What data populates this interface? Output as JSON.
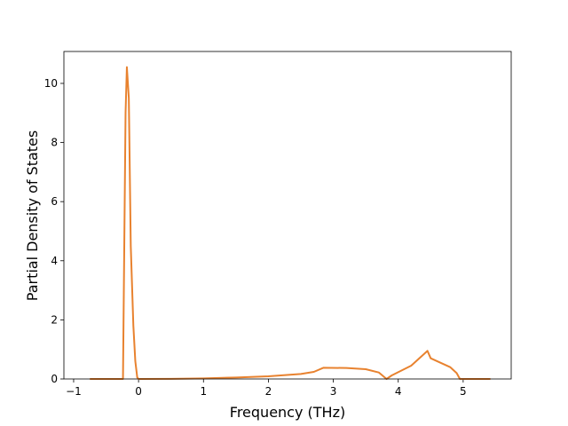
{
  "chart_data": {
    "type": "line",
    "xlabel": "Frequency (THz)",
    "ylabel": "Partial Density of States",
    "xlim": [
      -1.15,
      5.74
    ],
    "ylim": [
      0,
      11.08
    ],
    "xticks": [
      {
        "value": -1,
        "label": "−1"
      },
      0,
      1,
      2,
      3,
      4,
      5
    ],
    "yticks": [
      0,
      2,
      4,
      6,
      8,
      10
    ],
    "grid": false,
    "series": [
      {
        "color": "#e8822f",
        "x": [
          -0.75,
          -0.24,
          -0.2,
          -0.18,
          -0.15,
          -0.12,
          -0.08,
          -0.05,
          -0.02,
          0,
          0.5,
          1,
          1.5,
          2,
          2.5,
          2.7,
          2.85,
          3.2,
          3.5,
          3.7,
          3.82,
          3.9,
          4.2,
          4.45,
          4.5,
          4.8,
          4.9,
          4.95,
          5.42
        ],
        "values": [
          0,
          0,
          9.0,
          10.55,
          9.5,
          4.5,
          1.8,
          0.6,
          0.05,
          0,
          0.005,
          0.02,
          0.05,
          0.09,
          0.17,
          0.24,
          0.38,
          0.37,
          0.33,
          0.22,
          0,
          0.12,
          0.45,
          0.95,
          0.7,
          0.4,
          0.2,
          0,
          0
        ]
      }
    ]
  }
}
